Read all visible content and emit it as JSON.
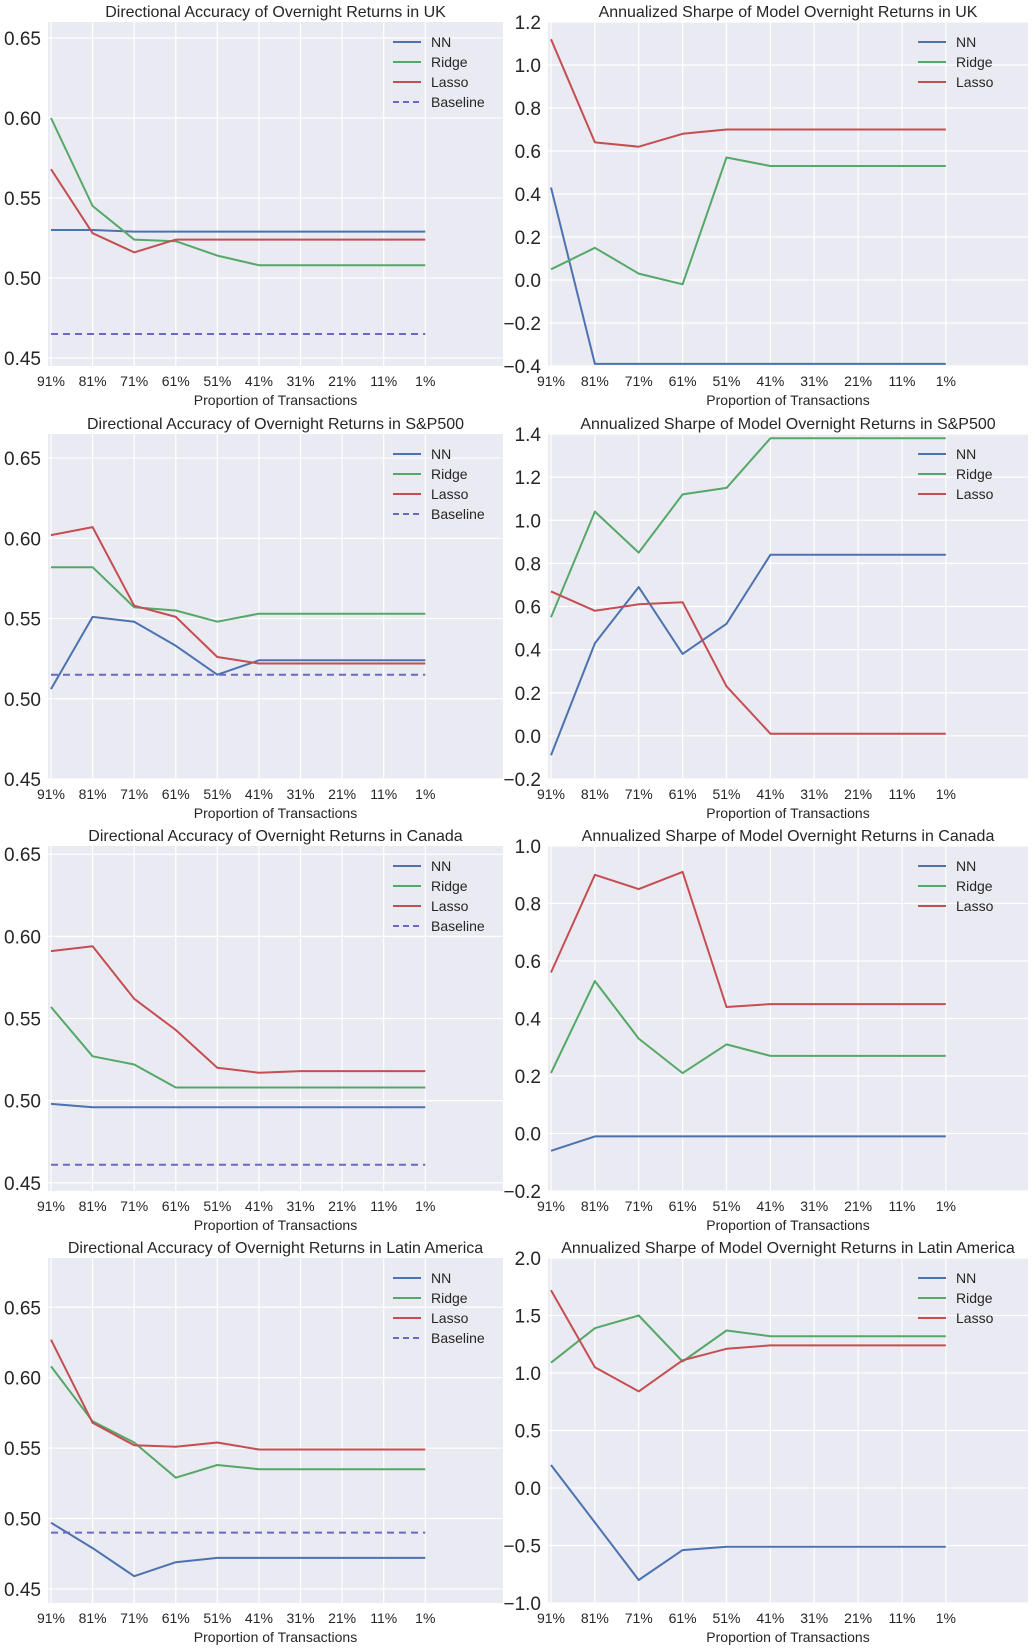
{
  "chart_data": [
    {
      "type": "line",
      "title": "Directional Accuracy of Overnight Returns in UK",
      "xlabel": "Proportion of Transactions",
      "ylabel": "",
      "categories": [
        "91%",
        "81%",
        "71%",
        "61%",
        "51%",
        "41%",
        "31%",
        "21%",
        "11%",
        "1%"
      ],
      "ylim": [
        0.445,
        0.66
      ],
      "yticks": [
        0.45,
        0.5,
        0.55,
        0.6,
        0.65
      ],
      "ytick_labels": [
        "0.45",
        "0.50",
        "0.55",
        "0.60",
        "0.65"
      ],
      "grid": true,
      "legend": "top-right",
      "series": [
        {
          "name": "NN",
          "color": "#4c72b0",
          "dash": false,
          "values": [
            0.53,
            0.53,
            0.529,
            0.529,
            0.529,
            0.529,
            0.529,
            0.529,
            0.529,
            0.529
          ]
        },
        {
          "name": "Ridge",
          "color": "#55a868",
          "dash": false,
          "values": [
            0.6,
            0.545,
            0.524,
            0.523,
            0.514,
            0.508,
            0.508,
            0.508,
            0.508,
            0.508
          ]
        },
        {
          "name": "Lasso",
          "color": "#c44e52",
          "dash": false,
          "values": [
            0.568,
            0.528,
            0.516,
            0.524,
            0.524,
            0.524,
            0.524,
            0.524,
            0.524,
            0.524
          ]
        },
        {
          "name": "Baseline",
          "color": "#6a6ac0",
          "dash": true,
          "values": [
            0.465,
            0.465,
            0.465,
            0.465,
            0.465,
            0.465,
            0.465,
            0.465,
            0.465,
            0.465
          ]
        }
      ]
    },
    {
      "type": "line",
      "title": "Annualized Sharpe of Model Overnight Returns in UK",
      "xlabel": "Proportion of Transactions",
      "ylabel": "",
      "categories": [
        "91%",
        "81%",
        "71%",
        "61%",
        "51%",
        "41%",
        "31%",
        "21%",
        "11%",
        "1%"
      ],
      "ylim": [
        -0.4,
        1.2
      ],
      "yticks": [
        -0.4,
        -0.2,
        0.0,
        0.2,
        0.4,
        0.6,
        0.8,
        1.0,
        1.2
      ],
      "ytick_labels": [
        "−0.4",
        "−0.2",
        "0.0",
        "0.2",
        "0.4",
        "0.6",
        "0.8",
        "1.0",
        "1.2"
      ],
      "grid": true,
      "legend": "top-right",
      "series": [
        {
          "name": "NN",
          "color": "#4c72b0",
          "dash": false,
          "values": [
            0.43,
            -0.39,
            -0.39,
            -0.39,
            -0.39,
            -0.39,
            -0.39,
            -0.39,
            -0.39,
            -0.39
          ]
        },
        {
          "name": "Ridge",
          "color": "#55a868",
          "dash": false,
          "values": [
            0.05,
            0.15,
            0.03,
            -0.02,
            0.57,
            0.53,
            0.53,
            0.53,
            0.53,
            0.53
          ]
        },
        {
          "name": "Lasso",
          "color": "#c44e52",
          "dash": false,
          "values": [
            1.12,
            0.64,
            0.62,
            0.68,
            0.7,
            0.7,
            0.7,
            0.7,
            0.7,
            0.7
          ]
        }
      ]
    },
    {
      "type": "line",
      "title": "Directional Accuracy of Overnight Returns in S&P500",
      "xlabel": "Proportion of Transactions",
      "ylabel": "",
      "categories": [
        "91%",
        "81%",
        "71%",
        "61%",
        "51%",
        "41%",
        "31%",
        "21%",
        "11%",
        "1%"
      ],
      "ylim": [
        0.45,
        0.665
      ],
      "yticks": [
        0.45,
        0.5,
        0.55,
        0.6,
        0.65
      ],
      "ytick_labels": [
        "0.45",
        "0.50",
        "0.55",
        "0.60",
        "0.65"
      ],
      "grid": true,
      "legend": "top-right",
      "series": [
        {
          "name": "NN",
          "color": "#4c72b0",
          "dash": false,
          "values": [
            0.506,
            0.551,
            0.548,
            0.533,
            0.515,
            0.524,
            0.524,
            0.524,
            0.524,
            0.524
          ]
        },
        {
          "name": "Ridge",
          "color": "#55a868",
          "dash": false,
          "values": [
            0.582,
            0.582,
            0.557,
            0.555,
            0.548,
            0.553,
            0.553,
            0.553,
            0.553,
            0.553
          ]
        },
        {
          "name": "Lasso",
          "color": "#c44e52",
          "dash": false,
          "values": [
            0.602,
            0.607,
            0.558,
            0.551,
            0.526,
            0.522,
            0.522,
            0.522,
            0.522,
            0.522
          ]
        },
        {
          "name": "Baseline",
          "color": "#6a6ac0",
          "dash": true,
          "values": [
            0.515,
            0.515,
            0.515,
            0.515,
            0.515,
            0.515,
            0.515,
            0.515,
            0.515,
            0.515
          ]
        }
      ]
    },
    {
      "type": "line",
      "title": "Annualized Sharpe of Model Overnight Returns in S&P500",
      "xlabel": "Proportion of Transactions",
      "ylabel": "",
      "categories": [
        "91%",
        "81%",
        "71%",
        "61%",
        "51%",
        "41%",
        "31%",
        "21%",
        "11%",
        "1%"
      ],
      "ylim": [
        -0.2,
        1.4
      ],
      "yticks": [
        -0.2,
        0.0,
        0.2,
        0.4,
        0.6,
        0.8,
        1.0,
        1.2,
        1.4
      ],
      "ytick_labels": [
        "−0.2",
        "0.0",
        "0.2",
        "0.4",
        "0.6",
        "0.8",
        "1.0",
        "1.2",
        "1.4"
      ],
      "grid": true,
      "legend": "top-right",
      "series": [
        {
          "name": "NN",
          "color": "#4c72b0",
          "dash": false,
          "values": [
            -0.09,
            0.43,
            0.69,
            0.38,
            0.52,
            0.84,
            0.84,
            0.84,
            0.84,
            0.84
          ]
        },
        {
          "name": "Ridge",
          "color": "#55a868",
          "dash": false,
          "values": [
            0.55,
            1.04,
            0.85,
            1.12,
            1.15,
            1.38,
            1.38,
            1.38,
            1.38,
            1.38
          ]
        },
        {
          "name": "Lasso",
          "color": "#c44e52",
          "dash": false,
          "values": [
            0.67,
            0.58,
            0.61,
            0.62,
            0.23,
            0.01,
            0.01,
            0.01,
            0.01,
            0.01
          ]
        }
      ]
    },
    {
      "type": "line",
      "title": "Directional Accuracy of Overnight Returns in Canada",
      "xlabel": "Proportion of Transactions",
      "ylabel": "",
      "categories": [
        "91%",
        "81%",
        "71%",
        "61%",
        "51%",
        "41%",
        "31%",
        "21%",
        "11%",
        "1%"
      ],
      "ylim": [
        0.445,
        0.655
      ],
      "yticks": [
        0.45,
        0.5,
        0.55,
        0.6,
        0.65
      ],
      "ytick_labels": [
        "0.45",
        "0.50",
        "0.55",
        "0.60",
        "0.65"
      ],
      "grid": true,
      "legend": "top-right",
      "series": [
        {
          "name": "NN",
          "color": "#4c72b0",
          "dash": false,
          "values": [
            0.498,
            0.496,
            0.496,
            0.496,
            0.496,
            0.496,
            0.496,
            0.496,
            0.496,
            0.496
          ]
        },
        {
          "name": "Ridge",
          "color": "#55a868",
          "dash": false,
          "values": [
            0.557,
            0.527,
            0.522,
            0.508,
            0.508,
            0.508,
            0.508,
            0.508,
            0.508,
            0.508
          ]
        },
        {
          "name": "Lasso",
          "color": "#c44e52",
          "dash": false,
          "values": [
            0.591,
            0.594,
            0.562,
            0.543,
            0.52,
            0.517,
            0.518,
            0.518,
            0.518,
            0.518
          ]
        },
        {
          "name": "Baseline",
          "color": "#6a6ac0",
          "dash": true,
          "values": [
            0.461,
            0.461,
            0.461,
            0.461,
            0.461,
            0.461,
            0.461,
            0.461,
            0.461,
            0.461
          ]
        }
      ]
    },
    {
      "type": "line",
      "title": "Annualized Sharpe of Model Overnight Returns in Canada",
      "xlabel": "Proportion of Transactions",
      "ylabel": "",
      "categories": [
        "91%",
        "81%",
        "71%",
        "61%",
        "51%",
        "41%",
        "31%",
        "21%",
        "11%",
        "1%"
      ],
      "ylim": [
        -0.2,
        1.0
      ],
      "yticks": [
        -0.2,
        0.0,
        0.2,
        0.4,
        0.6,
        0.8,
        1.0
      ],
      "ytick_labels": [
        "−0.2",
        "0.0",
        "0.2",
        "0.4",
        "0.6",
        "0.8",
        "1.0"
      ],
      "grid": true,
      "legend": "top-right",
      "series": [
        {
          "name": "NN",
          "color": "#4c72b0",
          "dash": false,
          "values": [
            -0.06,
            -0.01,
            -0.01,
            -0.01,
            -0.01,
            -0.01,
            -0.01,
            -0.01,
            -0.01,
            -0.01
          ]
        },
        {
          "name": "Ridge",
          "color": "#55a868",
          "dash": false,
          "values": [
            0.21,
            0.53,
            0.33,
            0.21,
            0.31,
            0.27,
            0.27,
            0.27,
            0.27,
            0.27
          ]
        },
        {
          "name": "Lasso",
          "color": "#c44e52",
          "dash": false,
          "values": [
            0.56,
            0.9,
            0.85,
            0.91,
            0.44,
            0.45,
            0.45,
            0.45,
            0.45,
            0.45
          ]
        }
      ]
    },
    {
      "type": "line",
      "title": "Directional Accuracy of Overnight Returns in Latin America",
      "xlabel": "Proportion of Transactions",
      "ylabel": "",
      "categories": [
        "91%",
        "81%",
        "71%",
        "61%",
        "51%",
        "41%",
        "31%",
        "21%",
        "11%",
        "1%"
      ],
      "ylim": [
        0.44,
        0.685
      ],
      "yticks": [
        0.45,
        0.5,
        0.55,
        0.6,
        0.65
      ],
      "ytick_labels": [
        "0.45",
        "0.50",
        "0.55",
        "0.60",
        "0.65"
      ],
      "grid": true,
      "legend": "top-right",
      "series": [
        {
          "name": "NN",
          "color": "#4c72b0",
          "dash": false,
          "values": [
            0.497,
            0.479,
            0.459,
            0.469,
            0.472,
            0.472,
            0.472,
            0.472,
            0.472,
            0.472
          ]
        },
        {
          "name": "Ridge",
          "color": "#55a868",
          "dash": false,
          "values": [
            0.608,
            0.569,
            0.554,
            0.529,
            0.538,
            0.535,
            0.535,
            0.535,
            0.535,
            0.535
          ]
        },
        {
          "name": "Lasso",
          "color": "#c44e52",
          "dash": false,
          "values": [
            0.627,
            0.568,
            0.552,
            0.551,
            0.554,
            0.549,
            0.549,
            0.549,
            0.549,
            0.549
          ]
        },
        {
          "name": "Baseline",
          "color": "#6a6ac0",
          "dash": true,
          "values": [
            0.49,
            0.49,
            0.49,
            0.49,
            0.49,
            0.49,
            0.49,
            0.49,
            0.49,
            0.49
          ]
        }
      ]
    },
    {
      "type": "line",
      "title": "Annualized Sharpe of Model Overnight Returns in Latin America",
      "xlabel": "Proportion of Transactions",
      "ylabel": "",
      "categories": [
        "91%",
        "81%",
        "71%",
        "61%",
        "51%",
        "41%",
        "31%",
        "21%",
        "11%",
        "1%"
      ],
      "ylim": [
        -1.0,
        2.0
      ],
      "yticks": [
        -1.0,
        -0.5,
        0.0,
        0.5,
        1.0,
        1.5,
        2.0
      ],
      "ytick_labels": [
        "−1.0",
        "−0.5",
        "0.0",
        "0.5",
        "1.0",
        "1.5",
        "2.0"
      ],
      "grid": true,
      "legend": "top-right",
      "series": [
        {
          "name": "NN",
          "color": "#4c72b0",
          "dash": false,
          "values": [
            0.2,
            -0.3,
            -0.8,
            -0.54,
            -0.51,
            -0.51,
            -0.51,
            -0.51,
            -0.51,
            -0.51
          ]
        },
        {
          "name": "Ridge",
          "color": "#55a868",
          "dash": false,
          "values": [
            1.09,
            1.39,
            1.5,
            1.1,
            1.37,
            1.32,
            1.32,
            1.32,
            1.32,
            1.32
          ]
        },
        {
          "name": "Lasso",
          "color": "#c44e52",
          "dash": false,
          "values": [
            1.72,
            1.05,
            0.84,
            1.11,
            1.21,
            1.24,
            1.24,
            1.24,
            1.24,
            1.24
          ]
        }
      ]
    }
  ],
  "style": {
    "axes_background": "#eaeaf2",
    "grid_color": "#ffffff",
    "text_color": "#262626"
  }
}
